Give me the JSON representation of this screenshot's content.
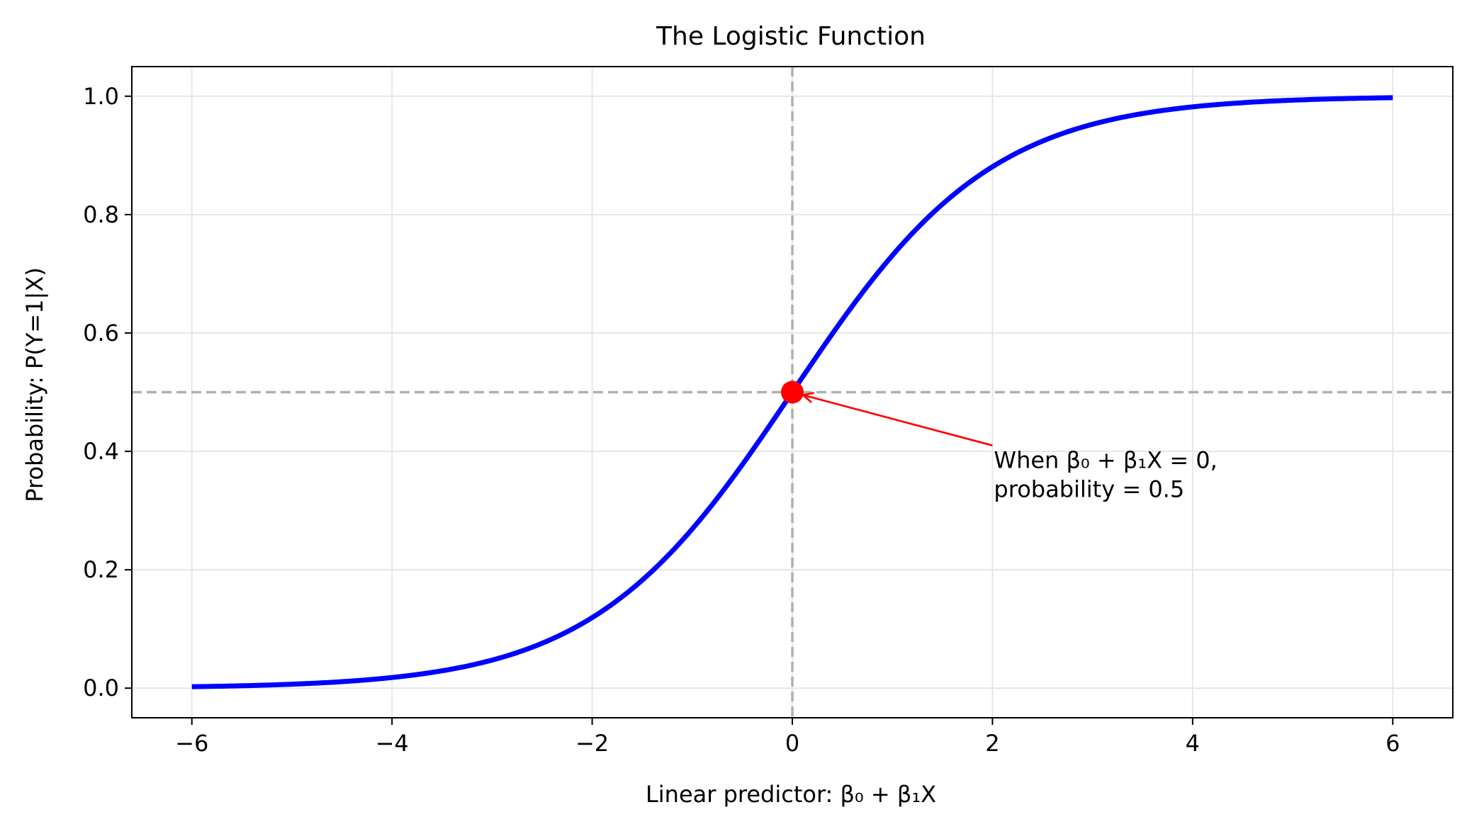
{
  "chart_data": {
    "type": "line",
    "title": "The Logistic Function",
    "xlabel": "Linear predictor: β₀ + β₁X",
    "ylabel": "Probability: P(Y=1|X)",
    "xlim": [
      -6.6,
      6.6
    ],
    "ylim": [
      -0.05,
      1.05
    ],
    "xticks": [
      -6,
      -4,
      -2,
      0,
      2,
      4,
      6
    ],
    "xtick_labels": [
      "−6",
      "−4",
      "−2",
      "0",
      "2",
      "4",
      "6"
    ],
    "yticks": [
      0.0,
      0.2,
      0.4,
      0.6,
      0.8,
      1.0
    ],
    "ytick_labels": [
      "0.0",
      "0.2",
      "0.4",
      "0.6",
      "0.8",
      "1.0"
    ],
    "grid": true,
    "series": [
      {
        "function": "logistic",
        "x_range": [
          -6,
          6
        ],
        "color": "#0000ff"
      }
    ],
    "reference_lines": [
      {
        "orientation": "vertical",
        "value": 0,
        "style": "dashed",
        "color": "#b0b0b0"
      },
      {
        "orientation": "horizontal",
        "value": 0.5,
        "style": "dashed",
        "color": "#b0b0b0"
      }
    ],
    "highlight_point": {
      "x": 0,
      "y": 0.5,
      "color": "#ff0000"
    },
    "annotation": {
      "lines": [
        "When β₀ + β₁X = 0,",
        "probability = 0.5"
      ],
      "text_x": 2.0,
      "text_y": 0.41,
      "target_x": 0,
      "target_y": 0.5,
      "arrow_color": "#ff0000"
    }
  }
}
